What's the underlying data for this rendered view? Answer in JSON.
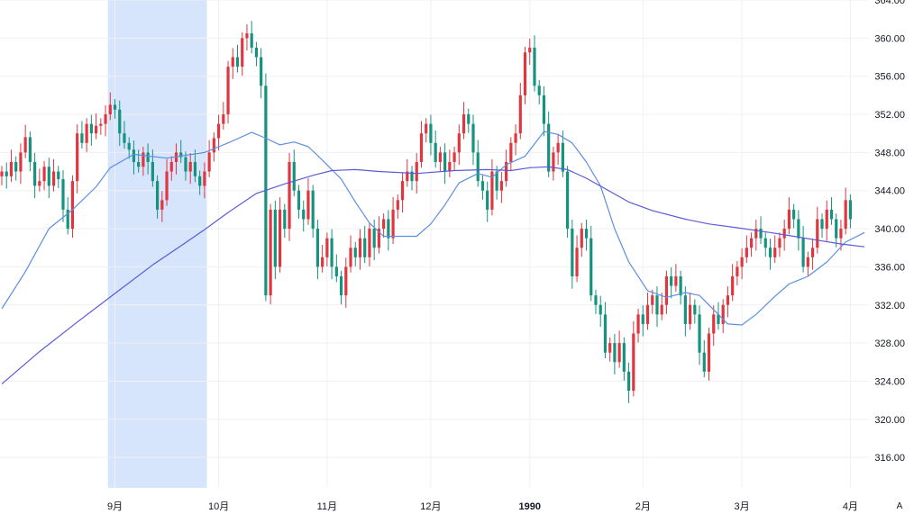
{
  "chart_data": {
    "type": "candlestick",
    "title": "",
    "xlabel": "",
    "ylabel": "",
    "ylim": [
      312.8,
      364
    ],
    "grid": true,
    "y_ticks": [
      "316.00",
      "320.00",
      "324.00",
      "328.00",
      "332.00",
      "336.00",
      "340.00",
      "344.00",
      "348.00",
      "352.00",
      "356.00",
      "360.00",
      "364.00"
    ],
    "x_ticks": [
      {
        "label": "9月",
        "bold": false,
        "index": 24
      },
      {
        "label": "10月",
        "bold": false,
        "index": 46
      },
      {
        "label": "11月",
        "bold": false,
        "index": 69
      },
      {
        "label": "12月",
        "bold": false,
        "index": 91
      },
      {
        "label": "1990",
        "bold": true,
        "index": 112
      },
      {
        "label": "2月",
        "bold": false,
        "index": 136
      },
      {
        "label": "3月",
        "bold": false,
        "index": 157
      },
      {
        "label": "4月",
        "bold": false,
        "index": 180
      }
    ],
    "highlight_range": {
      "from_index": 23,
      "to_index": 43,
      "color": "#d6e4fc"
    },
    "colors": {
      "up": "#e03640",
      "down": "#15937f",
      "ma_short": "#5d8fe0",
      "ma_long": "#5a5ad8",
      "grid": "#eef0f3"
    },
    "auto_label": "A",
    "closes": [
      346.0,
      345.5,
      347.0,
      346.0,
      348.0,
      349.6,
      347.0,
      344.5,
      345.0,
      346.5,
      344.5,
      346.0,
      345.2,
      342.0,
      340.0,
      345.0,
      350.0,
      349.0,
      351.0,
      350.0,
      350.8,
      351.0,
      352.0,
      353.0,
      352.5,
      350.0,
      349.0,
      348.3,
      347.0,
      346.5,
      348.0,
      347.0,
      345.0,
      342.0,
      343.0,
      346.0,
      347.0,
      348.0,
      347.5,
      346.0,
      347.0,
      345.5,
      344.5,
      346.0,
      348.0,
      349.5,
      351.0,
      352.0,
      357.0,
      358.0,
      357.0,
      360.0,
      360.5,
      359.0,
      358.0,
      355.0,
      333.0,
      342.0,
      336.0,
      342.0,
      340.0,
      347.0,
      344.0,
      342.0,
      341.0,
      344.0,
      340.0,
      336.0,
      337.0,
      339.0,
      336.0,
      335.0,
      333.0,
      336.0,
      338.0,
      337.0,
      339.0,
      337.0,
      340.0,
      338.0,
      340.0,
      341.0,
      339.0,
      342.0,
      343.0,
      345.0,
      346.0,
      345.0,
      347.0,
      350.0,
      351.0,
      349.0,
      347.0,
      348.0,
      346.0,
      347.0,
      348.0,
      350.0,
      352.0,
      351.0,
      348.0,
      345.0,
      344.0,
      342.0,
      346.0,
      344.0,
      345.0,
      347.0,
      349.0,
      350.0,
      354.0,
      358.5,
      359.0,
      355.0,
      354.0,
      351.0,
      346.0,
      348.0,
      349.0,
      346.0,
      340.0,
      335.0,
      338.0,
      340.0,
      339.0,
      333.0,
      332.0,
      331.0,
      327.0,
      328.0,
      326.0,
      328.0,
      325.0,
      323.0,
      329.0,
      331.0,
      330.0,
      332.0,
      333.0,
      331.0,
      332.0,
      335.0,
      334.0,
      335.0,
      333.0,
      330.0,
      332.0,
      331.0,
      327.0,
      325.0,
      329.0,
      331.0,
      330.0,
      332.0,
      333.0,
      335.0,
      336.0,
      337.0,
      338.0,
      339.0,
      340.0,
      339.0,
      338.0,
      337.0,
      338.0,
      339.0,
      340.0,
      342.0,
      341.0,
      339.0,
      336.0,
      337.0,
      338.0,
      341.0,
      340.0,
      342.0,
      341.0,
      339.0,
      340.0,
      343.0,
      341.0
    ],
    "ma_short": [
      [
        0,
        331.6
      ],
      [
        5,
        335.5
      ],
      [
        10,
        340.0
      ],
      [
        15,
        342.0
      ],
      [
        20,
        344.4
      ],
      [
        23,
        346.4
      ],
      [
        28,
        347.8
      ],
      [
        35,
        347.4
      ],
      [
        43,
        348.0
      ],
      [
        48,
        349.0
      ],
      [
        53,
        350.1
      ],
      [
        56,
        349.5
      ],
      [
        59,
        348.8
      ],
      [
        62,
        349.1
      ],
      [
        65,
        348.6
      ],
      [
        68,
        347.2
      ],
      [
        72,
        345.2
      ],
      [
        75,
        342.8
      ],
      [
        78,
        340.6
      ],
      [
        81,
        339.2
      ],
      [
        85,
        339.2
      ],
      [
        88,
        339.2
      ],
      [
        91,
        340.5
      ],
      [
        94,
        342.5
      ],
      [
        97,
        344.8
      ],
      [
        101,
        345.8
      ],
      [
        104,
        345.4
      ],
      [
        107,
        346.7
      ],
      [
        111,
        347.6
      ],
      [
        115,
        350.2
      ],
      [
        118,
        349.9
      ],
      [
        121,
        349.0
      ],
      [
        124,
        347.0
      ],
      [
        127,
        344.5
      ],
      [
        130,
        340.0
      ],
      [
        133,
        336.5
      ],
      [
        137,
        333.5
      ],
      [
        141,
        332.8
      ],
      [
        145,
        333.3
      ],
      [
        148,
        333.0
      ],
      [
        152,
        331.0
      ],
      [
        154,
        330.0
      ],
      [
        157,
        329.9
      ],
      [
        160,
        331.0
      ],
      [
        164,
        332.9
      ],
      [
        167,
        334.2
      ],
      [
        171,
        335.0
      ],
      [
        175,
        336.5
      ],
      [
        179,
        338.6
      ],
      [
        183,
        339.6
      ]
    ],
    "ma_long": [
      [
        0,
        323.7
      ],
      [
        8,
        327.1
      ],
      [
        16,
        330.2
      ],
      [
        24,
        333.2
      ],
      [
        32,
        336.2
      ],
      [
        38,
        338.2
      ],
      [
        43,
        339.9
      ],
      [
        48,
        341.7
      ],
      [
        54,
        343.7
      ],
      [
        60,
        344.7
      ],
      [
        66,
        345.6
      ],
      [
        70,
        346.1
      ],
      [
        75,
        346.2
      ],
      [
        80,
        346.0
      ],
      [
        88,
        345.8
      ],
      [
        96,
        346.1
      ],
      [
        103,
        346.2
      ],
      [
        108,
        346.1
      ],
      [
        112,
        346.4
      ],
      [
        116,
        346.5
      ],
      [
        120,
        346.2
      ],
      [
        124,
        345.3
      ],
      [
        128,
        344.2
      ],
      [
        133,
        342.8
      ],
      [
        138,
        341.9
      ],
      [
        145,
        341.0
      ],
      [
        150,
        340.5
      ],
      [
        156,
        340.1
      ],
      [
        163,
        339.6
      ],
      [
        168,
        339.2
      ],
      [
        173,
        338.8
      ],
      [
        178,
        338.4
      ],
      [
        183,
        338.1
      ]
    ]
  }
}
